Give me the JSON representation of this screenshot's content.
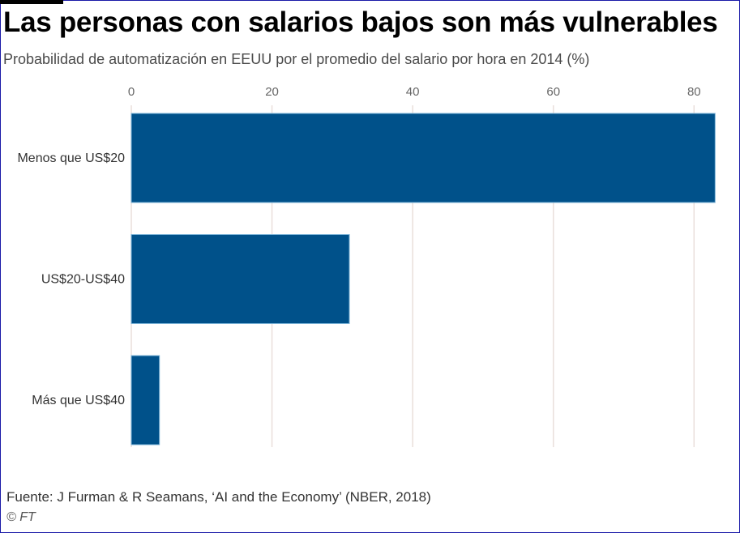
{
  "header": {
    "title": "Las personas con salarios bajos son más vulnerables",
    "subtitle": "Probabilidad de automatización en EEUU por el promedio del salario por hora en 2014 (%)"
  },
  "footer": {
    "source": "Fuente: J Furman & R Seamans, ‘AI and the Economy’ (NBER, 2018)",
    "brand": "© FT"
  },
  "colors": {
    "bar": "#00518a",
    "grid": "#eadfdb"
  },
  "chart_data": {
    "type": "bar",
    "orientation": "horizontal",
    "title": "Las personas con salarios bajos son más vulnerables",
    "subtitle": "Probabilidad de automatización en EEUU por el promedio del salario por hora en 2014 (%)",
    "categories": [
      "Menos que US$20",
      "US$20-US$40",
      "Más que US$40"
    ],
    "values": [
      83,
      31,
      4
    ],
    "xlim": [
      0,
      84
    ],
    "xticks": [
      0,
      20,
      40,
      60,
      80
    ],
    "xlabel": "",
    "ylabel": "",
    "grid": true,
    "axis_position": "top"
  }
}
